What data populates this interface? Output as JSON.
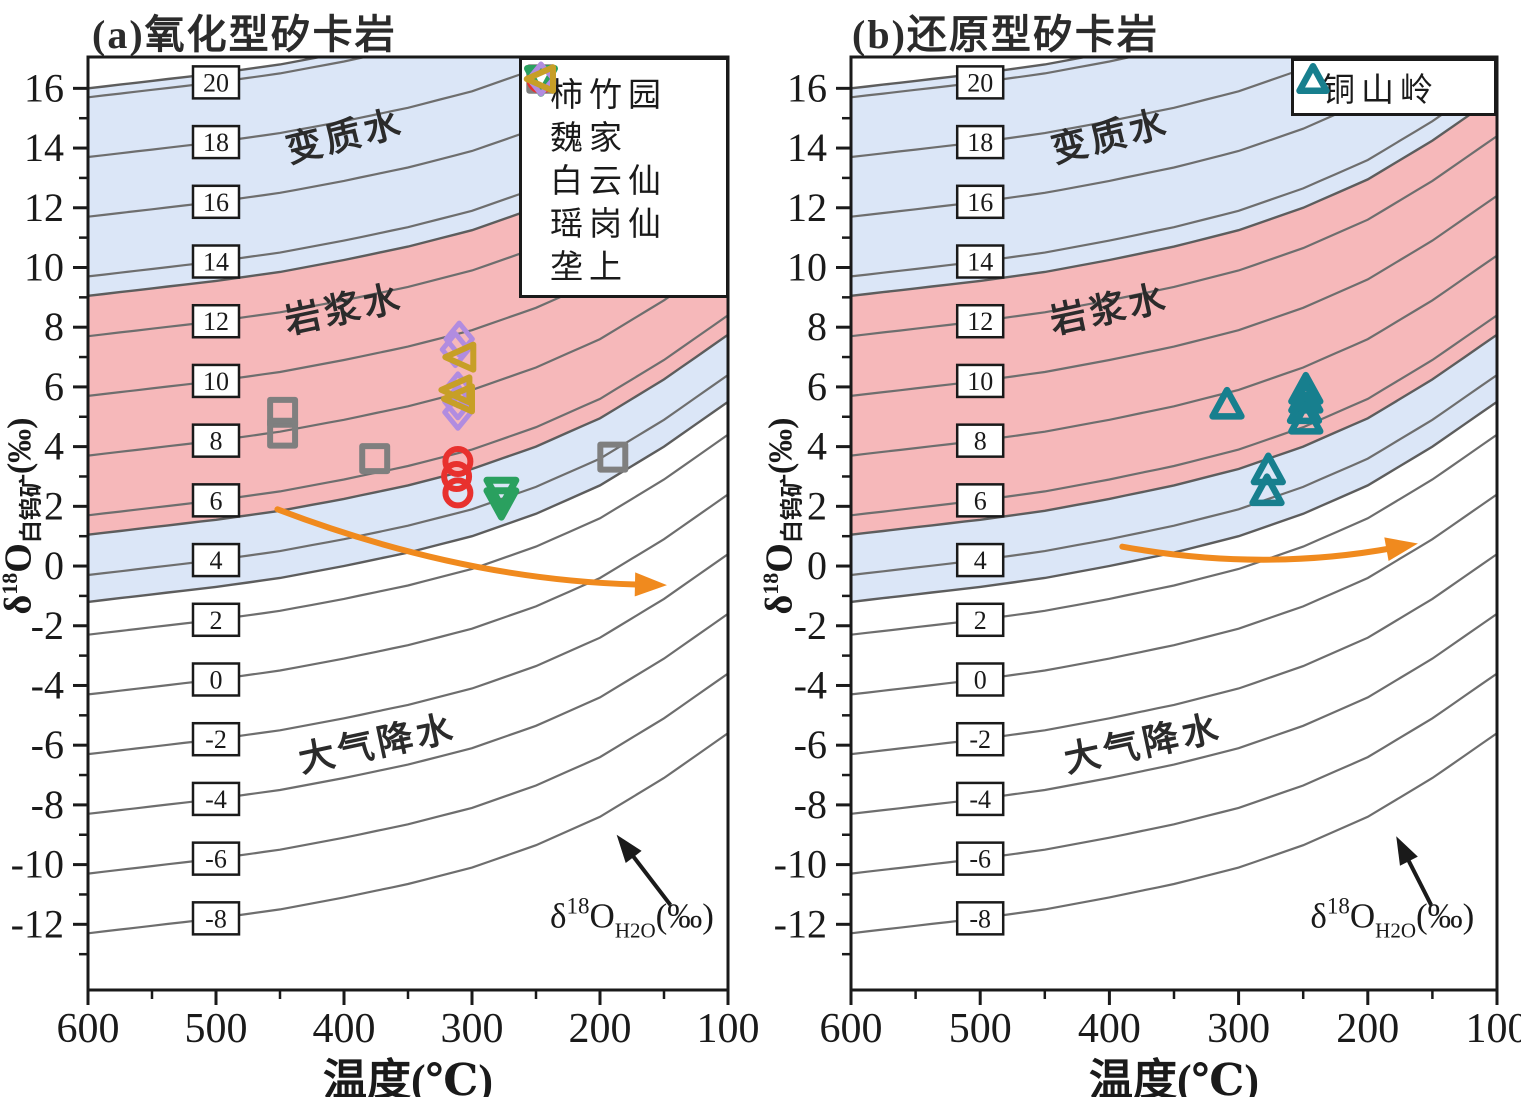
{
  "figure": {
    "colors": {
      "band_blue": "#dbe6f7",
      "band_pink": "#f6b8ba",
      "contour_gray": "#6e6e6e",
      "orange": "#f08a1e",
      "black": "#1a1a1a"
    }
  },
  "chart_data": [
    {
      "type": "line",
      "panel": "a",
      "title": "(a)氧化型矽卡岩",
      "x_axis": {
        "label": "温度(℃)",
        "min": 100,
        "max": 600,
        "reversed": true,
        "ticks": [
          600,
          500,
          400,
          300,
          200,
          100
        ],
        "minor_ticks": [
          550,
          450,
          350,
          250,
          150
        ]
      },
      "y_axis": {
        "label_parts": {
          "delta": "δ",
          "sup": "18",
          "main": "O",
          "sub": "白钨矿",
          "suffix": "(‰)"
        },
        "min": -14.2,
        "max": 17.05,
        "ticks": [
          16,
          14,
          12,
          10,
          8,
          6,
          4,
          2,
          0,
          -2,
          -4,
          -6,
          -8,
          -10,
          -12
        ]
      },
      "contours": {
        "isoline_values": [
          20,
          18,
          16,
          14,
          12,
          10,
          8,
          6,
          4,
          2,
          0,
          -2,
          -4,
          -6,
          -8
        ],
        "meaning": "δ18O of water (‰)"
      },
      "bands": [
        {
          "name": "变质水",
          "water_range": [
            13.35,
            20.3
          ],
          "color_key": "band_blue"
        },
        {
          "name": "岩浆水",
          "water_range": [
            5.35,
            13.35
          ],
          "color_key": "band_pink"
        },
        {
          "name": "",
          "water_range": [
            3.1,
            5.35
          ],
          "color_key": "band_blue"
        }
      ],
      "region_labels": [
        {
          "text": "变质水",
          "T": 397,
          "d18O": 14.0,
          "rotate": -14
        },
        {
          "text": "岩浆水",
          "T": 398,
          "d18O": 8.2,
          "rotate": -12
        },
        {
          "text": "大气降水",
          "T": 372,
          "d18O": -6.35,
          "rotate": -12
        }
      ],
      "series": [
        {
          "name": "柿竹园",
          "marker": "square",
          "color": "#7f7f7f",
          "points": [
            [
              448,
              5.15
            ],
            [
              448,
              4.45
            ],
            [
              376,
              3.6
            ],
            [
              190,
              3.65
            ]
          ]
        },
        {
          "name": "魏家",
          "marker": "circle",
          "color": "#e8312e",
          "points": [
            [
              311,
              3.5
            ],
            [
              312,
              3.0
            ],
            [
              311,
              2.45
            ]
          ]
        },
        {
          "name": "白云仙",
          "marker": "triangle-down",
          "color": "#2aa05f",
          "points": [
            [
              277,
              2.5
            ],
            [
              277,
              2.15
            ]
          ]
        },
        {
          "name": "瑶岗仙",
          "marker": "diamond",
          "color": "#b18ce0",
          "points": [
            [
              310,
              7.6
            ],
            [
              313,
              7.25
            ],
            [
              311,
              5.9
            ],
            [
              311,
              5.5
            ],
            [
              311,
              5.15
            ]
          ]
        },
        {
          "name": "垄上",
          "marker": "triangle-left",
          "color": "#c79f27",
          "points": [
            [
              309,
              7.0
            ],
            [
              312,
              5.9
            ],
            [
              310,
              5.6
            ]
          ]
        }
      ],
      "flow_arrow": {
        "from": [
          452,
          1.9
        ],
        "ctrl": [
          305,
          -0.5
        ],
        "to": [
          168,
          -0.62
        ]
      },
      "contour_annotation": {
        "label_parts": {
          "delta": "δ",
          "sup": "18",
          "main": "O",
          "sub": "H2O",
          "suffix": "(‰)"
        },
        "T": 175,
        "d18O": -12.1,
        "arrow_tail": [
          145,
          -11.35
        ],
        "arrow_tip": [
          187,
          -9.0
        ]
      }
    },
    {
      "type": "line",
      "panel": "b",
      "title": "(b)还原型矽卡岩",
      "x_axis": {
        "label": "温度(℃)",
        "min": 100,
        "max": 600,
        "reversed": true,
        "ticks": [
          600,
          500,
          400,
          300,
          200,
          100
        ],
        "minor_ticks": [
          550,
          450,
          350,
          250,
          150
        ]
      },
      "y_axis": {
        "label_parts": {
          "delta": "δ",
          "sup": "18",
          "main": "O",
          "sub": "白钨矿",
          "suffix": "(‰)"
        },
        "min": -14.2,
        "max": 17.05,
        "ticks": [
          16,
          14,
          12,
          10,
          8,
          6,
          4,
          2,
          0,
          -2,
          -4,
          -6,
          -8,
          -10,
          -12
        ]
      },
      "contours": {
        "isoline_values": [
          20,
          18,
          16,
          14,
          12,
          10,
          8,
          6,
          4,
          2,
          0,
          -2,
          -4,
          -6,
          -8
        ],
        "meaning": "δ18O of water (‰)"
      },
      "bands": [
        {
          "name": "变质水",
          "water_range": [
            13.35,
            20.3
          ],
          "color_key": "band_blue"
        },
        {
          "name": "岩浆水",
          "water_range": [
            5.35,
            13.35
          ],
          "color_key": "band_pink"
        },
        {
          "name": "",
          "water_range": [
            3.1,
            5.35
          ],
          "color_key": "band_blue"
        }
      ],
      "region_labels": [
        {
          "text": "变质水",
          "T": 397,
          "d18O": 14.0,
          "rotate": -14
        },
        {
          "text": "岩浆水",
          "T": 398,
          "d18O": 8.2,
          "rotate": -12
        },
        {
          "text": "大气降水",
          "T": 372,
          "d18O": -6.35,
          "rotate": -12
        }
      ],
      "series": [
        {
          "name": "铜山岭",
          "marker": "triangle-up",
          "color": "#177f8e",
          "points": [
            [
              309,
              5.4
            ],
            [
              248,
              5.9
            ],
            [
              248,
              5.6
            ],
            [
              249,
              5.25
            ],
            [
              248,
              4.9
            ],
            [
              277,
              3.2
            ],
            [
              278,
              2.5
            ]
          ]
        }
      ],
      "flow_arrow": {
        "from": [
          390,
          0.65
        ],
        "ctrl": [
          283,
          -0.2
        ],
        "to": [
          181,
          0.6
        ]
      },
      "contour_annotation": {
        "label_parts": {
          "delta": "δ",
          "sup": "18",
          "main": "O",
          "sub": "H2O",
          "suffix": "(‰)"
        },
        "T": 181,
        "d18O": -12.1,
        "arrow_tail": [
          151,
          -11.35
        ],
        "arrow_tip": [
          178,
          -9.05
        ]
      }
    }
  ]
}
